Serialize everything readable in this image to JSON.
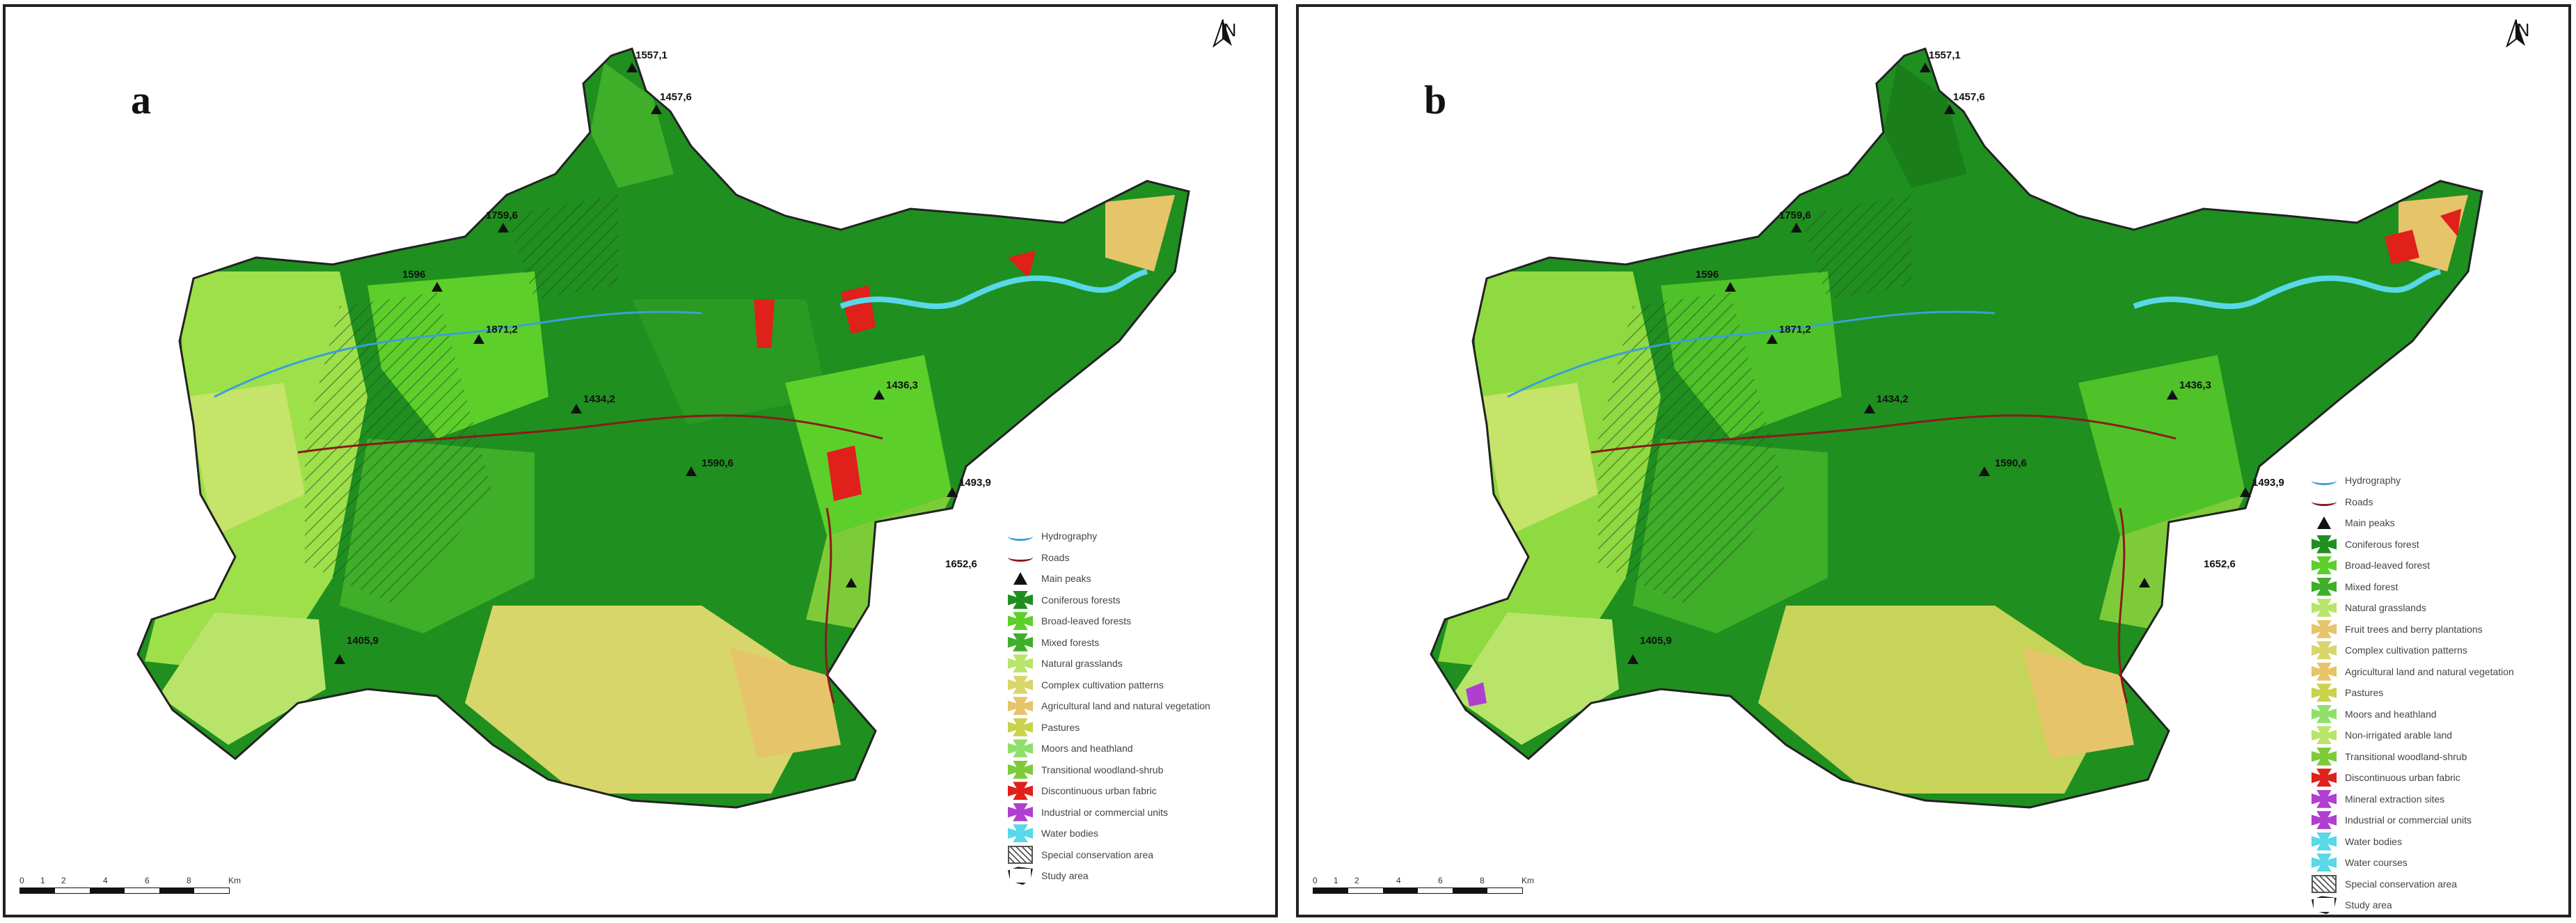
{
  "colors": {
    "coniferous": "#1f8f1f",
    "broadleaved": "#5dcf2a",
    "mixed": "#3fae28",
    "grassland": "#b9e46a",
    "complex": "#d8d66a",
    "agri_natural": "#e6c46a",
    "pastures": "#c9d24a",
    "moors": "#8ee06a",
    "transitional": "#7ecb3a",
    "urban": "#e0201a",
    "industrial": "#b03fd1",
    "water": "#58d8e8",
    "hydro": "#3aa0d8",
    "roads": "#8b1a1a",
    "background": "#ffffff"
  },
  "panels": [
    {
      "letter": "a",
      "north": "N",
      "peaks": [
        "1557,1",
        "1457,6",
        "1759,6",
        "1596",
        "1871,2",
        "1434,2",
        "1436,3",
        "1590,6",
        "1493,9",
        "1652,6",
        "1405,9"
      ],
      "legend": [
        {
          "label": "Hydrography",
          "kind": "line",
          "color": "hydro"
        },
        {
          "label": "Roads",
          "kind": "line",
          "color": "roads"
        },
        {
          "label": "Main peaks",
          "kind": "triangle",
          "color": ""
        },
        {
          "label": "Coniferous forests",
          "kind": "patch",
          "color": "coniferous"
        },
        {
          "label": "Broad-leaved forests",
          "kind": "patch",
          "color": "broadleaved"
        },
        {
          "label": "Mixed forests",
          "kind": "patch",
          "color": "mixed"
        },
        {
          "label": "Natural grasslands",
          "kind": "patch",
          "color": "grassland"
        },
        {
          "label": "Complex cultivation patterns",
          "kind": "patch",
          "color": "complex"
        },
        {
          "label": "Agricultural land and natural vegetation",
          "kind": "patch",
          "color": "agri_natural"
        },
        {
          "label": "Pastures",
          "kind": "patch",
          "color": "pastures"
        },
        {
          "label": "Moors and heathland",
          "kind": "patch",
          "color": "moors"
        },
        {
          "label": "Transitional woodland-shrub",
          "kind": "patch",
          "color": "transitional"
        },
        {
          "label": "Discontinuous urban fabric",
          "kind": "patch",
          "color": "urban"
        },
        {
          "label": "Industrial or commercial units",
          "kind": "patch",
          "color": "industrial"
        },
        {
          "label": "Water bodies",
          "kind": "patch",
          "color": "water"
        },
        {
          "label": "Special conservation area",
          "kind": "hatch",
          "color": ""
        },
        {
          "label": "Study area",
          "kind": "outline",
          "color": ""
        }
      ],
      "scale": {
        "ticks": [
          "0",
          "1",
          "2",
          "4",
          "6",
          "8"
        ],
        "unit": "Km"
      }
    },
    {
      "letter": "b",
      "north": "N",
      "peaks": [
        "1557,1",
        "1457,6",
        "1759,6",
        "1596",
        "1871,2",
        "1434,2",
        "1436,3",
        "1590,6",
        "1493,9",
        "1652,6",
        "1405,9"
      ],
      "legend": [
        {
          "label": "Hydrography",
          "kind": "line",
          "color": "hydro"
        },
        {
          "label": "Roads",
          "kind": "line",
          "color": "roads"
        },
        {
          "label": "Main peaks",
          "kind": "triangle",
          "color": ""
        },
        {
          "label": "Coniferous forest",
          "kind": "patch",
          "color": "coniferous"
        },
        {
          "label": "Broad-leaved forest",
          "kind": "patch",
          "color": "broadleaved"
        },
        {
          "label": "Mixed forest",
          "kind": "patch",
          "color": "mixed"
        },
        {
          "label": "Natural grasslands",
          "kind": "patch",
          "color": "grassland"
        },
        {
          "label": "Fruit trees and berry plantations",
          "kind": "patch",
          "color": "agri_natural"
        },
        {
          "label": "Complex cultivation patterns",
          "kind": "patch",
          "color": "complex"
        },
        {
          "label": "Agricultural land and natural vegetation",
          "kind": "patch",
          "color": "agri_natural"
        },
        {
          "label": "Pastures",
          "kind": "patch",
          "color": "pastures"
        },
        {
          "label": "Moors and heathland",
          "kind": "patch",
          "color": "moors"
        },
        {
          "label": "Non-irrigated arable land",
          "kind": "patch",
          "color": "grassland"
        },
        {
          "label": "Transitional woodland-shrub",
          "kind": "patch",
          "color": "transitional"
        },
        {
          "label": "Discontinuous urban fabric",
          "kind": "patch",
          "color": "urban"
        },
        {
          "label": "Mineral extraction sites",
          "kind": "patch",
          "color": "industrial"
        },
        {
          "label": "Industrial or commercial units",
          "kind": "patch",
          "color": "industrial"
        },
        {
          "label": "Water bodies",
          "kind": "patch",
          "color": "water"
        },
        {
          "label": "Water courses",
          "kind": "patch",
          "color": "water"
        },
        {
          "label": "Special conservation area",
          "kind": "hatch",
          "color": ""
        },
        {
          "label": "Study area",
          "kind": "outline",
          "color": ""
        }
      ],
      "scale": {
        "ticks": [
          "0",
          "1",
          "2",
          "4",
          "6",
          "8"
        ],
        "unit": "Km"
      }
    }
  ]
}
